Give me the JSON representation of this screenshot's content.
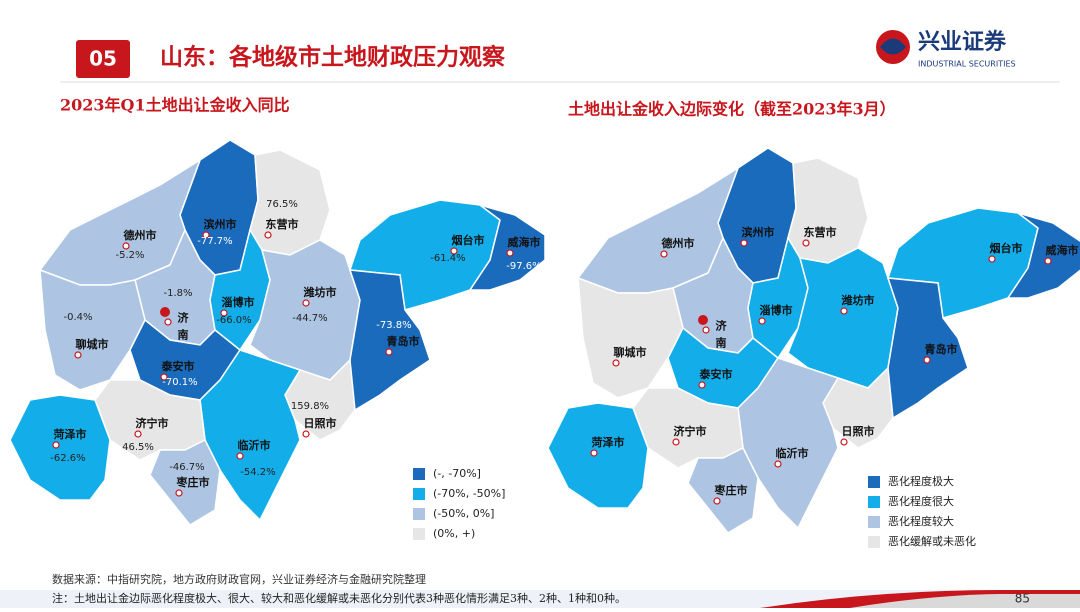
{
  "header": {
    "badge": "05",
    "title": "山东：各地级市土地财政压力观察",
    "logo_cn": "兴业证券",
    "logo_en": "INDUSTRIAL SECURITIES"
  },
  "left_map": {
    "title": "2023年Q1土地出让金收入同比",
    "regions": [
      {
        "name": "滨州市",
        "label": "-77.7%",
        "color": "#1b6bbd"
      },
      {
        "name": "东营市",
        "label": "76.5%",
        "color": "#e6e6e6"
      },
      {
        "name": "德州市",
        "label": "-5.2%",
        "color": "#adc5e2"
      },
      {
        "name": "济南市",
        "label": "-1.8%",
        "color": "#adc5e2"
      },
      {
        "name": "聊城市",
        "label": "-0.4%",
        "color": "#adc5e2"
      },
      {
        "name": "淄博市",
        "label": "-66.0%",
        "color": "#13aeea"
      },
      {
        "name": "潍坊市",
        "label": "-44.7%",
        "color": "#adc5e2"
      },
      {
        "name": "烟台市",
        "label": "-61.4%",
        "color": "#13aeea"
      },
      {
        "name": "威海市",
        "label": "-97.6%",
        "color": "#1b6bbd"
      },
      {
        "name": "青岛市",
        "label": "-73.8%",
        "color": "#1b6bbd"
      },
      {
        "name": "泰安市",
        "label": "-70.1%",
        "color": "#1b6bbd"
      },
      {
        "name": "日照市",
        "label": "159.8%",
        "color": "#e6e6e6"
      },
      {
        "name": "临沂市",
        "label": "-54.2%",
        "color": "#13aeea"
      },
      {
        "name": "济宁市",
        "label": "46.5%",
        "color": "#e6e6e6"
      },
      {
        "name": "菏泽市",
        "label": "-62.6%",
        "color": "#13aeea"
      },
      {
        "name": "枣庄市",
        "label": "-46.7%",
        "color": "#adc5e2"
      }
    ],
    "legend": [
      {
        "label": "(-, -70%]",
        "color": "#1b6bbd"
      },
      {
        "label": "(-70%, -50%]",
        "color": "#13aeea"
      },
      {
        "label": "(-50%, 0%]",
        "color": "#adc5e2"
      },
      {
        "label": "(0%, +)",
        "color": "#e6e6e6"
      }
    ]
  },
  "right_map": {
    "title": "土地出让金收入边际变化（截至2023年3月）",
    "regions": [
      {
        "name": "滨州市",
        "color": "#1b6bbd"
      },
      {
        "name": "东营市",
        "color": "#e6e6e6"
      },
      {
        "name": "德州市",
        "color": "#adc5e2"
      },
      {
        "name": "济南市",
        "color": "#adc5e2"
      },
      {
        "name": "聊城市",
        "color": "#e6e6e6"
      },
      {
        "name": "淄博市",
        "color": "#13aeea"
      },
      {
        "name": "潍坊市",
        "color": "#13aeea"
      },
      {
        "name": "烟台市",
        "color": "#13aeea"
      },
      {
        "name": "威海市",
        "color": "#1b6bbd"
      },
      {
        "name": "青岛市",
        "color": "#1b6bbd"
      },
      {
        "name": "泰安市",
        "color": "#13aeea"
      },
      {
        "name": "日照市",
        "color": "#e6e6e6"
      },
      {
        "name": "临沂市",
        "color": "#adc5e2"
      },
      {
        "name": "济宁市",
        "color": "#e6e6e6"
      },
      {
        "name": "菏泽市",
        "color": "#13aeea"
      },
      {
        "name": "枣庄市",
        "color": "#adc5e2"
      }
    ],
    "legend": [
      {
        "label": "恶化程度极大",
        "color": "#1b6bbd"
      },
      {
        "label": "恶化程度很大",
        "color": "#13aeea"
      },
      {
        "label": "恶化程度较大",
        "color": "#adc5e2"
      },
      {
        "label": "恶化缓解或未恶化",
        "color": "#e6e6e6"
      }
    ]
  },
  "footer": {
    "source": "数据来源：中指研究院，地方政府财政官网，兴业证券经济与金融研究院整理",
    "note": "注：土地出让金边际恶化程度极大、很大、较大和恶化缓解或未恶化分别代表3种恶化情形满足3种、2种、1种和0种。",
    "page": "85"
  }
}
